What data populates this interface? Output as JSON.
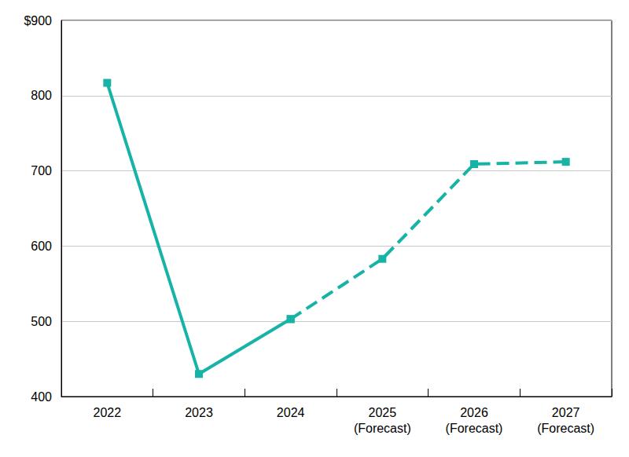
{
  "chart_data": {
    "type": "line",
    "categories": [
      "2022",
      "2023",
      "2024",
      "2025\n(Forecast)",
      "2026\n(Forecast)",
      "2027\n(Forecast)"
    ],
    "series": [
      {
        "values": [
          817,
          430,
          503,
          null,
          null,
          null
        ],
        "line_style": "solid"
      },
      {
        "values": [
          null,
          null,
          503,
          583,
          709,
          712
        ],
        "line_style": "dashed"
      }
    ],
    "color": "#17b3a6",
    "marker": "square",
    "ylim": [
      400,
      900
    ],
    "yticks": [
      400,
      500,
      600,
      700,
      800,
      {
        "value": 900,
        "label": "$900"
      }
    ],
    "grid": true
  }
}
